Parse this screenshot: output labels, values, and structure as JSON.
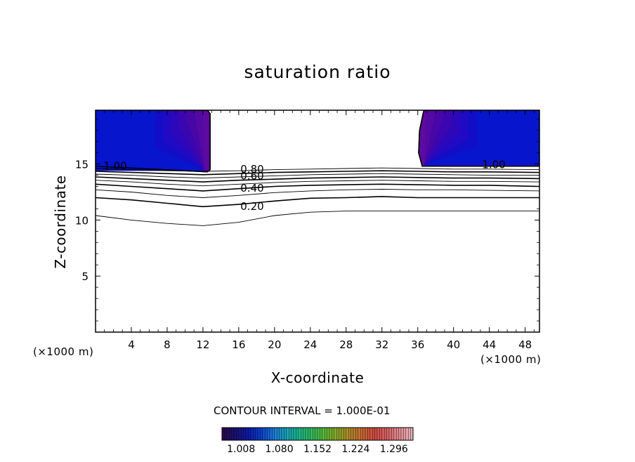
{
  "chart_data": {
    "type": "contour",
    "title": "saturation ratio",
    "xlabel": "X-coordinate",
    "ylabel": "Z-coordinate",
    "x_unit_label": "(×1000 m)",
    "y_unit_label": "(×1000 m)",
    "xlim": [
      0,
      49.6
    ],
    "ylim": [
      0,
      19.8
    ],
    "x_ticks": [
      4,
      8,
      12,
      16,
      20,
      24,
      28,
      32,
      36,
      40,
      44,
      48
    ],
    "y_ticks": [
      5,
      10,
      15
    ],
    "contour_interval_text": "CONTOUR INTERVAL = 1.000E-01",
    "contour_labels": [
      "0.80",
      "0.60",
      "0.40",
      "0.20",
      "1.00",
      "1.00"
    ],
    "contour_levels": [
      0.1,
      0.2,
      0.3,
      0.4,
      0.5,
      0.6,
      0.7,
      0.8,
      0.9,
      1.0
    ],
    "contours": [
      {
        "level": 0.1,
        "x": [
          0,
          4,
          8,
          12,
          16,
          20,
          24,
          28,
          32,
          36,
          40,
          44,
          49.6
        ],
        "z": [
          10.4,
          10.0,
          9.7,
          9.5,
          9.8,
          10.4,
          10.7,
          10.8,
          10.8,
          10.8,
          10.8,
          10.8,
          10.8
        ]
      },
      {
        "level": 0.2,
        "x": [
          0,
          4,
          8,
          12,
          16,
          20,
          24,
          28,
          32,
          36,
          40,
          44,
          49.6
        ],
        "z": [
          12.0,
          11.8,
          11.5,
          11.2,
          11.4,
          11.7,
          11.95,
          12.0,
          12.1,
          12.0,
          12.0,
          12.0,
          12.0
        ]
      },
      {
        "level": 0.3,
        "x": [
          0,
          4,
          8,
          12,
          16,
          20,
          24,
          28,
          32,
          36,
          40,
          44,
          49.6
        ],
        "z": [
          12.7,
          12.5,
          12.2,
          12.0,
          12.2,
          12.45,
          12.6,
          12.7,
          12.75,
          12.7,
          12.7,
          12.65,
          12.6
        ]
      },
      {
        "level": 0.4,
        "x": [
          0,
          4,
          8,
          12,
          16,
          20,
          24,
          28,
          32,
          36,
          40,
          44,
          49.6
        ],
        "z": [
          13.2,
          13.0,
          12.8,
          12.6,
          12.8,
          13.0,
          13.1,
          13.15,
          13.2,
          13.15,
          13.1,
          13.1,
          13.0
        ]
      },
      {
        "level": 0.5,
        "x": [
          0,
          4,
          8,
          12,
          16,
          20,
          24,
          28,
          32,
          36,
          40,
          44,
          49.6
        ],
        "z": [
          13.55,
          13.4,
          13.2,
          13.05,
          13.2,
          13.35,
          13.45,
          13.5,
          13.55,
          13.5,
          13.45,
          13.45,
          13.4
        ]
      },
      {
        "level": 0.6,
        "x": [
          0,
          4,
          8,
          12,
          16,
          20,
          24,
          28,
          32,
          36,
          40,
          44,
          49.6
        ],
        "z": [
          13.85,
          13.7,
          13.55,
          13.4,
          13.55,
          13.65,
          13.75,
          13.8,
          13.85,
          13.8,
          13.75,
          13.75,
          13.7
        ]
      },
      {
        "level": 0.7,
        "x": [
          0,
          4,
          8,
          12,
          16,
          20,
          24,
          28,
          32,
          36,
          40,
          44,
          49.6
        ],
        "z": [
          14.1,
          14.0,
          13.85,
          13.75,
          13.85,
          13.95,
          14.05,
          14.1,
          14.15,
          14.1,
          14.05,
          14.0,
          14.0
        ]
      },
      {
        "level": 0.8,
        "x": [
          0,
          4,
          8,
          12,
          16,
          20,
          24,
          28,
          32,
          36,
          40,
          44,
          49.6
        ],
        "z": [
          14.35,
          14.25,
          14.15,
          14.05,
          14.15,
          14.25,
          14.3,
          14.35,
          14.4,
          14.35,
          14.3,
          14.3,
          14.25
        ]
      },
      {
        "level": 0.9,
        "x": [
          0,
          4,
          8,
          12,
          16,
          20,
          24,
          28,
          32,
          36,
          40,
          44,
          49.6
        ],
        "z": [
          14.6,
          14.5,
          14.4,
          14.35,
          14.4,
          14.5,
          14.55,
          14.6,
          14.65,
          14.6,
          14.55,
          14.55,
          14.5
        ]
      }
    ],
    "supersaturated_regions": [
      {
        "x": [
          0,
          0,
          12.5,
          12.8,
          12.8,
          12.5
        ],
        "z": [
          19.8,
          14.8,
          14.3,
          14.5,
          19.5,
          19.8
        ]
      },
      {
        "x": [
          49.6,
          49.6,
          36.5,
          36.1,
          36.2,
          36.6,
          36.7
        ],
        "z": [
          19.8,
          14.8,
          14.8,
          16.0,
          18.0,
          19.5,
          19.8
        ]
      }
    ],
    "colorbar": {
      "tick_labels": [
        "1.008",
        "1.080",
        "1.152",
        "1.224",
        "1.296"
      ],
      "min": 0.972,
      "max": 1.332,
      "colors": [
        "#2a0a4a",
        "#1a1070",
        "#0b1aa8",
        "#0b3ec8",
        "#1a78d8",
        "#1aa0b8",
        "#1ab488",
        "#30b860",
        "#58b838",
        "#88a828",
        "#b08a28",
        "#c86a30",
        "#d04a40",
        "#d86060",
        "#e08a90",
        "#e8b0b8"
      ],
      "fill_colors": [
        "#5c0aa0",
        "#5208a4",
        "#4606a8",
        "#3a06b0",
        "#2c08bc",
        "#1e0ac4",
        "#100ec8",
        "#0618cc"
      ]
    }
  }
}
